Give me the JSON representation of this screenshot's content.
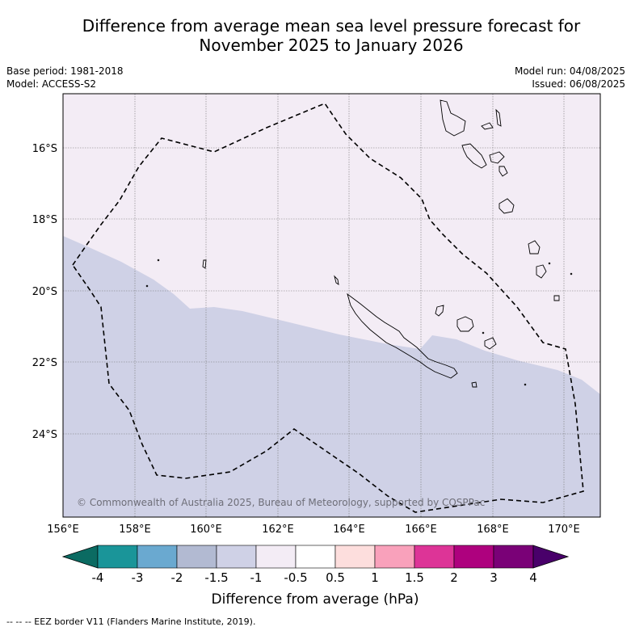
{
  "title_line1": "Difference from average mean sea level pressure forecast for",
  "title_line2": "November 2025 to January 2026",
  "base_period": "Base period: 1981-2018",
  "model": "Model: ACCESS-S2",
  "model_run": "Model run: 04/08/2025",
  "issued": "Issued: 06/08/2025",
  "copyright": "© Commonwealth of Australia 2025, Bureau of Meteorology, supported by COSPPac",
  "lat_labels": [
    "16°S",
    "18°S",
    "20°S",
    "22°S",
    "24°S"
  ],
  "lon_labels": [
    "156°E",
    "158°E",
    "160°E",
    "162°E",
    "164°E",
    "166°E",
    "168°E",
    "170°E"
  ],
  "colorbar": {
    "label": "Difference from average (hPa)",
    "ticks": [
      "-4",
      "-3",
      "-2",
      "-1.5",
      "-1",
      "-0.5",
      "0.5",
      "1",
      "1.5",
      "2",
      "3",
      "4"
    ],
    "colors": [
      "#0b6b62",
      "#1a9599",
      "#6aa9d0",
      "#b2bad2",
      "#cfd1e6",
      "#f3ecf5",
      "#ffffff",
      "#fddedd",
      "#f9a1bb",
      "#dd3497",
      "#ae017e",
      "#7a0177",
      "#49006a"
    ]
  },
  "footer": "-- -- -- EEZ border V11 (Flanders Marine Institute, 2019)."
}
